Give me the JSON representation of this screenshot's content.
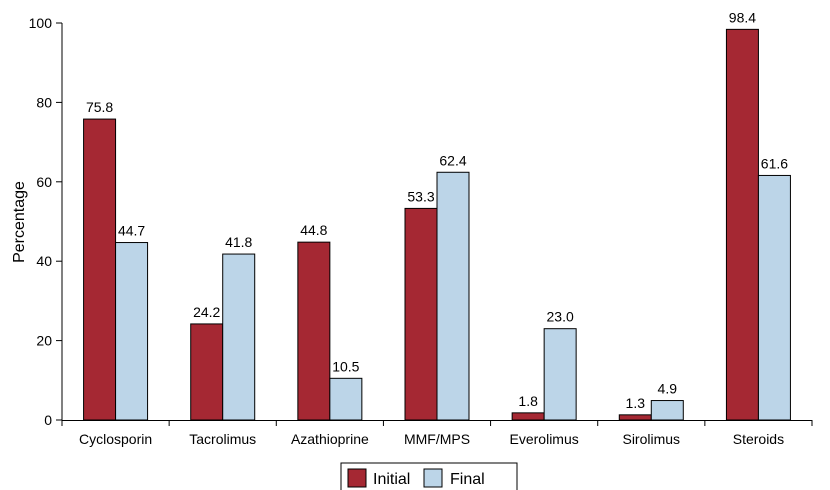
{
  "chart_data": {
    "type": "bar",
    "ylabel": "Percentage",
    "xlabel": "",
    "ylim": [
      0,
      100
    ],
    "yticks": [
      "0",
      "20",
      "40",
      "60",
      "80",
      "100"
    ],
    "categories": [
      "Cyclosporin",
      "Tacrolimus",
      "Azathioprine",
      "MMF/MPS",
      "Everolimus",
      "Sirolimus",
      "Steroids"
    ],
    "series": [
      {
        "name": "Initial",
        "color": "#a52833",
        "values": [
          75.8,
          24.2,
          44.8,
          53.3,
          1.8,
          1.3,
          98.4
        ],
        "labels": [
          "75.8",
          "24.2",
          "44.8",
          "53.3",
          "1.8",
          "1.3",
          "98.4"
        ]
      },
      {
        "name": "Final",
        "color": "#bcd5e8",
        "values": [
          44.7,
          41.8,
          10.5,
          62.4,
          23.0,
          4.9,
          61.6
        ],
        "labels": [
          "44.7",
          "41.8",
          "10.5",
          "62.4",
          "23.0",
          "4.9",
          "61.6"
        ]
      }
    ],
    "grid": false,
    "legend": "bottom-center"
  }
}
